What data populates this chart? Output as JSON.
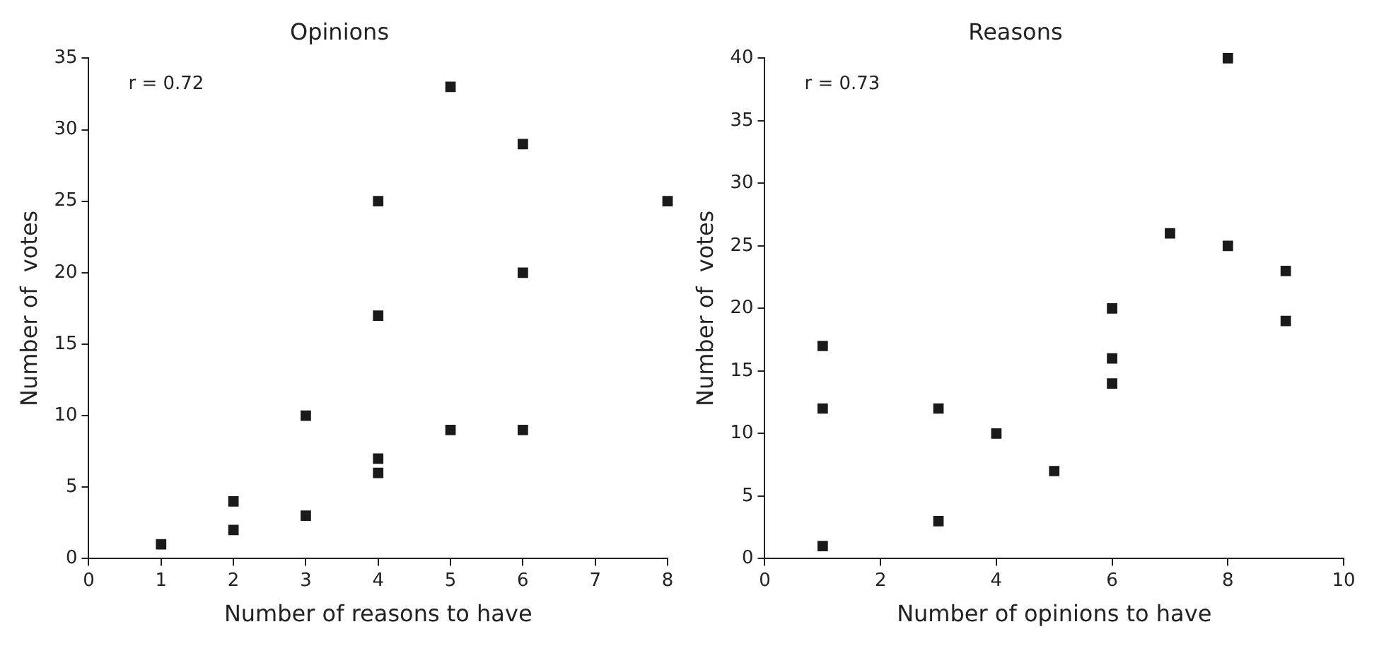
{
  "chart_data": [
    {
      "type": "scatter",
      "title": "Opinions",
      "xlabel": "Number of reasons to have",
      "ylabel": "Number of  votes",
      "annotations": [
        "r = 0.72"
      ],
      "x": [
        1,
        2,
        2,
        3,
        3,
        4,
        4,
        4,
        4,
        5,
        5,
        6,
        6,
        6,
        8
      ],
      "values": [
        1,
        4,
        2,
        10,
        3,
        25,
        17,
        7,
        6,
        33,
        9,
        29,
        20,
        9,
        25
      ],
      "color": "#1a1a1a",
      "marker": "square",
      "xlim": [
        0,
        8
      ],
      "xticks": [
        0,
        1,
        2,
        3,
        4,
        5,
        6,
        7,
        8
      ],
      "ylim": [
        0,
        35
      ],
      "yticks": [
        0,
        5,
        10,
        15,
        20,
        25,
        30,
        35
      ],
      "grid": false,
      "legend": false
    },
    {
      "type": "scatter",
      "title": "Reasons",
      "xlabel": "Number of opinions to have",
      "ylabel": "Number of  votes",
      "annotations": [
        "r = 0.73"
      ],
      "x": [
        1,
        1,
        1,
        3,
        3,
        4,
        5,
        6,
        6,
        6,
        7,
        8,
        8,
        9,
        9
      ],
      "values": [
        17,
        12,
        1,
        12,
        3,
        10,
        7,
        20,
        16,
        14,
        26,
        40,
        25,
        23,
        19
      ],
      "color": "#1a1a1a",
      "marker": "square",
      "xlim": [
        0,
        10
      ],
      "xticks": [
        0,
        2,
        4,
        6,
        8,
        10
      ],
      "ylim": [
        0,
        40
      ],
      "yticks": [
        0,
        5,
        10,
        15,
        20,
        25,
        30,
        35,
        40
      ],
      "grid": false,
      "legend": false
    }
  ]
}
